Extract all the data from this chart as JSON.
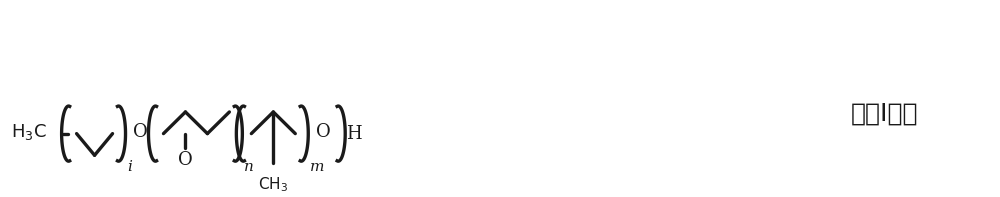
{
  "figsize": [
    10.0,
    1.97
  ],
  "dpi": 100,
  "bg_color": "#ffffff",
  "formula_text": "式（I）；",
  "line_color": "#1a1a1a",
  "line_width": 2.4,
  "font_color": "#1a1a1a",
  "ybase": 0.62,
  "xlim": [
    0,
    10
  ],
  "ylim": [
    0,
    1.97
  ]
}
